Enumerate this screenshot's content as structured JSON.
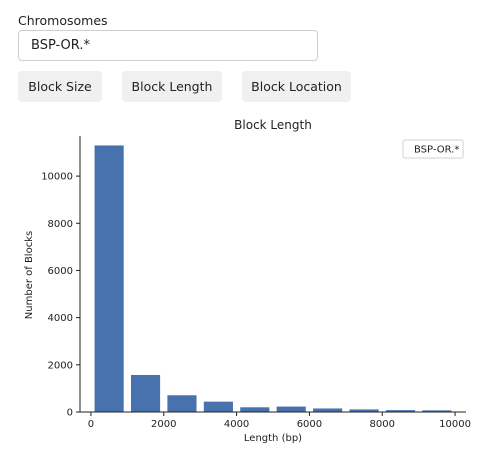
{
  "form": {
    "chromosomes_label": "Chromosomes",
    "chromosomes_value": "BSP-OR.*"
  },
  "buttons": [
    {
      "label": "Block Size"
    },
    {
      "label": "Block Length"
    },
    {
      "label": "Block Location"
    }
  ],
  "colors": {
    "bar": "#4872ae",
    "button_bg": "#f0f0f0"
  },
  "chart_data": {
    "type": "bar",
    "title": "Block Length",
    "xlabel": "Length (bp)",
    "ylabel": "Number of Blocks",
    "xlim": [
      -300,
      10300
    ],
    "ylim": [
      0,
      11700
    ],
    "xticks": [
      0,
      2000,
      4000,
      6000,
      8000,
      10000
    ],
    "yticks": [
      0,
      2000,
      4000,
      6000,
      8000,
      10000
    ],
    "legend": {
      "position": "top-right",
      "entries": [
        "BSP-OR.*"
      ]
    },
    "series": [
      {
        "name": "BSP-OR.*",
        "bins": [
          {
            "x0": 100,
            "x1": 900,
            "value": 11300
          },
          {
            "x0": 1100,
            "x1": 1900,
            "value": 1570
          },
          {
            "x0": 2100,
            "x1": 2900,
            "value": 710
          },
          {
            "x0": 3100,
            "x1": 3900,
            "value": 440
          },
          {
            "x0": 4100,
            "x1": 4900,
            "value": 200
          },
          {
            "x0": 5100,
            "x1": 5900,
            "value": 230
          },
          {
            "x0": 6100,
            "x1": 6900,
            "value": 150
          },
          {
            "x0": 7100,
            "x1": 7900,
            "value": 110
          },
          {
            "x0": 8100,
            "x1": 8900,
            "value": 80
          },
          {
            "x0": 9100,
            "x1": 9900,
            "value": 70
          }
        ]
      }
    ]
  }
}
